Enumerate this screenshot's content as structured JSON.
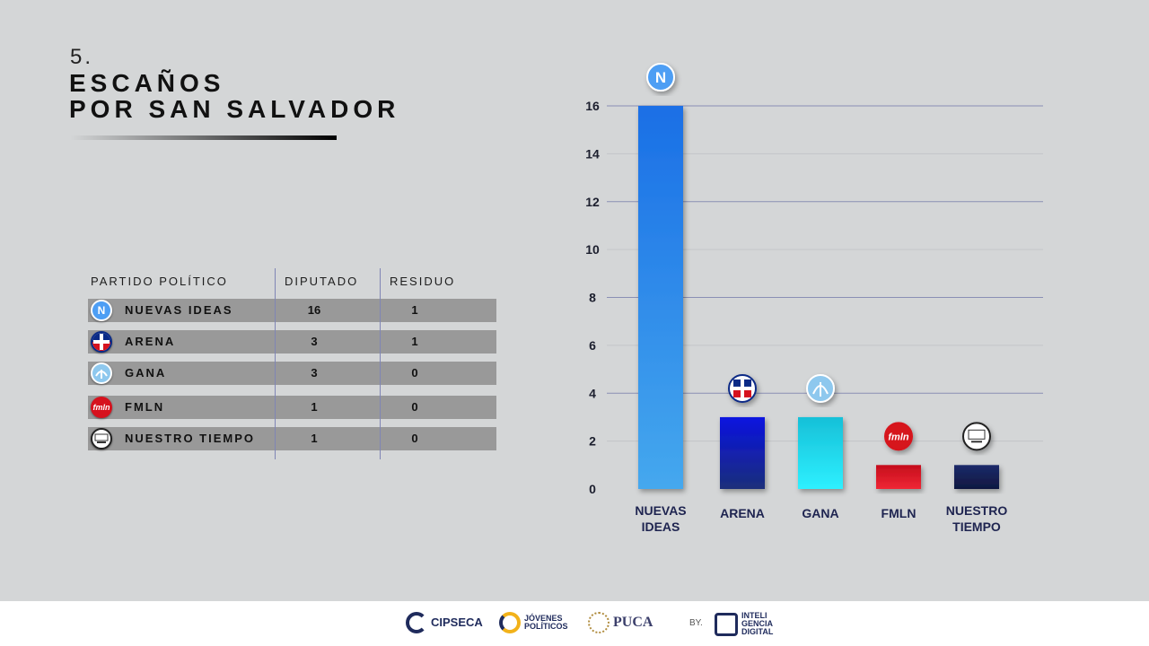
{
  "header": {
    "number": "5.",
    "title_line1": "ESCAÑOS",
    "title_line2": "POR SAN SALVADOR"
  },
  "table": {
    "col_party": "PARTIDO POLÍTICO",
    "col_deputies": "DIPUTADO",
    "col_residue": "RESIDUO",
    "rows": [
      {
        "logo": "N",
        "party": "NUEVAS IDEAS",
        "deputies": "16",
        "residue": "1"
      },
      {
        "logo": "",
        "party": "ARENA",
        "deputies": "3",
        "residue": "1"
      },
      {
        "logo": "",
        "party": "GANA",
        "deputies": "3",
        "residue": "0"
      },
      {
        "logo": "fmln",
        "party": "FMLN",
        "deputies": "1",
        "residue": "0"
      },
      {
        "logo": "",
        "party": "NUESTRO TIEMPO",
        "deputies": "1",
        "residue": "0"
      }
    ]
  },
  "chart_data": {
    "type": "bar",
    "categories": [
      [
        "NUEVAS",
        "IDEAS"
      ],
      [
        "ARENA"
      ],
      [
        "GANA"
      ],
      [
        "FMLN"
      ],
      [
        "NUESTRO",
        "TIEMPO"
      ]
    ],
    "values": [
      16,
      3,
      3,
      1,
      1
    ],
    "yticks": [
      0,
      2,
      4,
      6,
      8,
      10,
      12,
      14,
      16
    ],
    "ylim": [
      0,
      16
    ],
    "bar_colors": [
      [
        "#1a6fe6",
        "#45a8ee"
      ],
      [
        "#0a12e0",
        "#1b2f7a"
      ],
      [
        "#16c0d8",
        "#2ef0ff"
      ],
      [
        "#c50d1c",
        "#f02735"
      ],
      [
        "#1c2a6a",
        "#0f1840"
      ]
    ],
    "logo_icons": [
      "nuevas-ideas-logo",
      "arena-logo",
      "gana-logo",
      "fmln-logo",
      "nuestro-tiempo-logo"
    ],
    "logo_text": [
      "N",
      "",
      "",
      "fmln",
      ""
    ],
    "grid": true
  },
  "footer": {
    "sponsors": [
      "CIPSECA",
      "JÓVENES POLÍTICOS",
      "PUCA",
      "BY.",
      "INTELI GENCIA DIGITAL"
    ]
  }
}
